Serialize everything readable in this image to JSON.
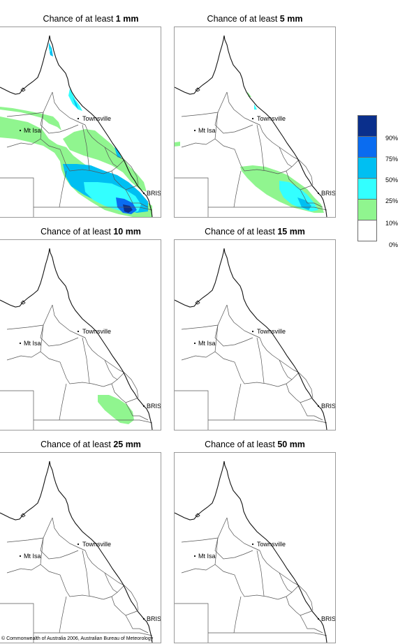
{
  "panels": [
    {
      "prefix": "Chance of at least ",
      "amount": "1 mm"
    },
    {
      "prefix": "Chance of at least ",
      "amount": "5 mm"
    },
    {
      "prefix": "Chance of at least ",
      "amount": "10 mm"
    },
    {
      "prefix": "Chance of at least ",
      "amount": "15 mm"
    },
    {
      "prefix": "Chance of at least ",
      "amount": "25 mm"
    },
    {
      "prefix": "Chance of at least ",
      "amount": "50 mm"
    }
  ],
  "places": {
    "townsville": "Townsville",
    "mt_isa": "Mt Isa",
    "brisbane": "BRIS"
  },
  "legend": {
    "labels": [
      "90%",
      "75%",
      "50%",
      "25%",
      "10%",
      "0%"
    ],
    "colors": [
      "#0a2f8c",
      "#0a6cf0",
      "#00bff2",
      "#33ffff",
      "#90f58f",
      "#ffffff"
    ]
  },
  "copyright": "© Commonwealth of Australia 2006, Australian Bureau of Meteorology"
}
